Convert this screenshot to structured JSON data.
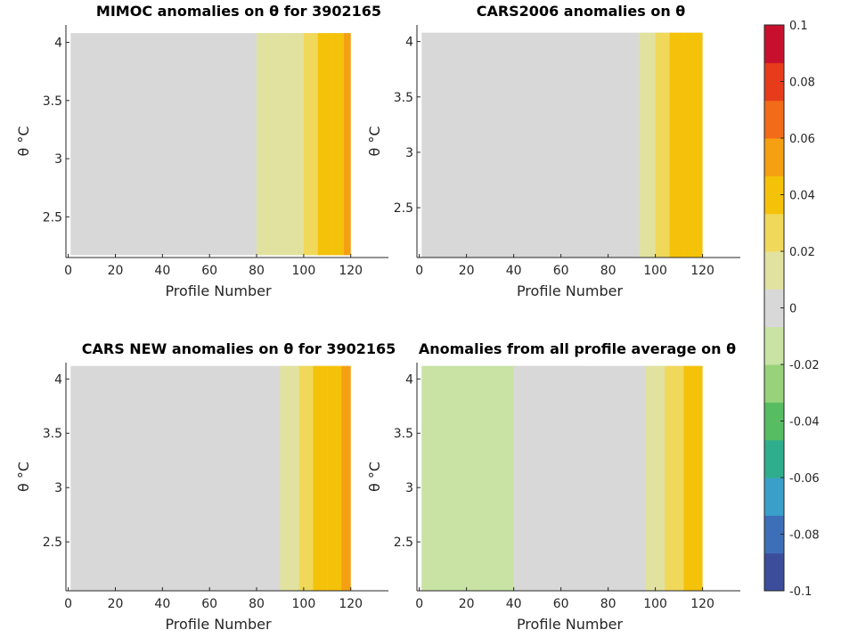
{
  "chart_data": {
    "figure_type": "heatmap",
    "colormap": [
      "#3b4d9b",
      "#3d6fb8",
      "#3aa0c9",
      "#2fae8e",
      "#57bd62",
      "#98d27a",
      "#c8e3a4",
      "#d8d8d8",
      "#e2e2a0",
      "#f0d85a",
      "#f5c20a",
      "#f5a012",
      "#f26b18",
      "#e63c1c",
      "#c8102e"
    ],
    "colorbar": {
      "range": [
        -0.1,
        0.1
      ],
      "tick_values": [
        0.1,
        0.08,
        0.06,
        0.04,
        0.02,
        0,
        -0.02,
        -0.04,
        -0.06,
        -0.08,
        -0.1
      ],
      "tick_labels": [
        "0.1",
        "0.08",
        "0.06",
        "0.04",
        "0.02",
        "0",
        "-0.02",
        "-0.04",
        "-0.06",
        "-0.08",
        "-0.1"
      ]
    },
    "panels": [
      {
        "title": "MIMOC anomalies on θ  for 3902165",
        "type": "heatmap",
        "xlabel": "Profile Number",
        "ylabel": "θ °C",
        "xlim": [
          -1,
          136
        ],
        "ylim": [
          2.15,
          4.15
        ],
        "xticks": [
          0,
          20,
          40,
          60,
          80,
          100,
          120
        ],
        "yticks": [
          2.5,
          3,
          3.5,
          4
        ],
        "ytick_labels": [
          "2.5",
          "3",
          "3.5",
          "4"
        ],
        "data_extent": {
          "x": [
            1,
            120
          ],
          "y": [
            2.17,
            4.08
          ]
        },
        "background_anomaly": 0.0,
        "bands": [
          {
            "x": [
              80,
              93
            ],
            "anomaly": 0.01
          },
          {
            "x": [
              93,
              100
            ],
            "anomaly": 0.016
          },
          {
            "x": [
              100,
              106
            ],
            "anomaly": 0.03
          },
          {
            "x": [
              106,
              112
            ],
            "anomaly": 0.036
          },
          {
            "x": [
              112,
              117
            ],
            "anomaly": 0.044
          },
          {
            "x": [
              117,
              120
            ],
            "anomaly": 0.052
          }
        ]
      },
      {
        "title": "CARS2006 anomalies on θ",
        "type": "heatmap",
        "xlabel": "Profile Number",
        "ylabel": "θ °C",
        "xlim": [
          -1,
          136
        ],
        "ylim": [
          2.05,
          4.15
        ],
        "xticks": [
          0,
          20,
          40,
          60,
          80,
          100,
          120
        ],
        "yticks": [
          2.5,
          3,
          3.5,
          4
        ],
        "ytick_labels": [
          "2.5",
          "3",
          "3.5",
          "4"
        ],
        "data_extent": {
          "x": [
            1,
            120
          ],
          "y": [
            2.05,
            4.08
          ]
        },
        "background_anomaly": 0.0,
        "bands": [
          {
            "x": [
              93,
              100
            ],
            "anomaly": 0.01
          },
          {
            "x": [
              100,
              106
            ],
            "anomaly": 0.028
          },
          {
            "x": [
              106,
              112
            ],
            "anomaly": 0.034
          },
          {
            "x": [
              112,
              120
            ],
            "anomaly": 0.04
          }
        ]
      },
      {
        "title": "CARS NEW anomalies on θ for 3902165",
        "type": "heatmap",
        "xlabel": "Profile Number",
        "ylabel": "θ °C",
        "xlim": [
          -1,
          136
        ],
        "ylim": [
          2.05,
          4.15
        ],
        "xticks": [
          0,
          20,
          40,
          60,
          80,
          100,
          120
        ],
        "yticks": [
          2.5,
          3,
          3.5,
          4
        ],
        "ytick_labels": [
          "2.5",
          "3",
          "3.5",
          "4"
        ],
        "data_extent": {
          "x": [
            1,
            120
          ],
          "y": [
            2.05,
            4.12
          ]
        },
        "background_anomaly": 0.0,
        "bands": [
          {
            "x": [
              90,
              98
            ],
            "anomaly": 0.008
          },
          {
            "x": [
              98,
              104
            ],
            "anomaly": 0.02
          },
          {
            "x": [
              104,
              110
            ],
            "anomaly": 0.034
          },
          {
            "x": [
              110,
              116
            ],
            "anomaly": 0.042
          },
          {
            "x": [
              116,
              120
            ],
            "anomaly": 0.05
          }
        ]
      },
      {
        "title": "Anomalies from all profile average on θ",
        "type": "heatmap",
        "xlabel": "Profile Number",
        "ylabel": "θ °C",
        "xlim": [
          -1,
          136
        ],
        "ylim": [
          2.05,
          4.15
        ],
        "xticks": [
          0,
          20,
          40,
          60,
          80,
          100,
          120
        ],
        "yticks": [
          2.5,
          3,
          3.5,
          4
        ],
        "ytick_labels": [
          "2.5",
          "3",
          "3.5",
          "4"
        ],
        "data_extent": {
          "x": [
            1,
            120
          ],
          "y": [
            2.05,
            4.12
          ]
        },
        "background_anomaly": 0.0,
        "bands": [
          {
            "x": [
              1,
              8
            ],
            "anomaly": -0.016
          },
          {
            "x": [
              8,
              40
            ],
            "anomaly": -0.01
          },
          {
            "x": [
              40,
              70
            ],
            "anomaly": -0.004
          },
          {
            "x": [
              96,
              104
            ],
            "anomaly": 0.014
          },
          {
            "x": [
              104,
              112
            ],
            "anomaly": 0.028
          },
          {
            "x": [
              112,
              120
            ],
            "anomaly": 0.036
          }
        ]
      }
    ]
  }
}
